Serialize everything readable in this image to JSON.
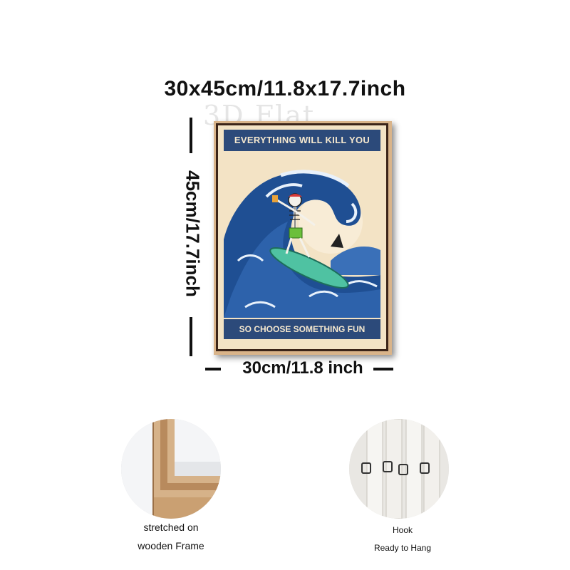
{
  "dimensions": {
    "title": "30x45cm/11.8x17.7inch",
    "height_label": "45cm/17.7inch",
    "width_label": "30cm/11.8 inch"
  },
  "watermark": "3D Flat",
  "poster": {
    "top_text": "EVERYTHING WILL KILL YOU",
    "bottom_text": "SO CHOOSE SOMETHING FUN"
  },
  "features": [
    {
      "icon": "wooden-frame-corner",
      "caption_line1": "stretched on",
      "caption_line2": "wooden Frame"
    },
    {
      "icon": "hook",
      "caption_line1": "Hook",
      "caption_line2": "Ready to Hang"
    }
  ],
  "colors": {
    "poster_blue": "#2c4a7a",
    "poster_cream": "#f3e3c5",
    "frame_wood": "#d9b48a"
  }
}
